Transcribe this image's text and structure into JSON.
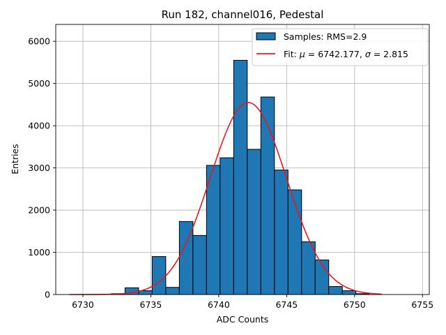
{
  "chart_data": {
    "type": "bar",
    "title": "Run 182, channel016, Pedestal",
    "xlabel": "ADC Counts",
    "ylabel": "Entries",
    "xlim": [
      6728,
      6755.5
    ],
    "ylim": [
      0,
      6400
    ],
    "xticks": [
      6730,
      6735,
      6740,
      6745,
      6750,
      6755
    ],
    "yticks": [
      0,
      1000,
      2000,
      3000,
      4000,
      5000,
      6000
    ],
    "grid": true,
    "legend_position": "top-right",
    "colors": {
      "bars": "#1f77b4",
      "bar_edge": "#000000",
      "fit": "#e41a1c",
      "grid": "#b0b0b0"
    },
    "series": [
      {
        "name": "Samples: RMS=2.9",
        "kind": "histogram",
        "bin_edges": [
          6732.1,
          6733.1,
          6734.1,
          6735.1,
          6736.1,
          6737.1,
          6738.1,
          6739.1,
          6740.1,
          6741.1,
          6742.1,
          6743.1,
          6744.1,
          6745.1,
          6746.1,
          6747.1,
          6748.1,
          6749.1,
          6750.1,
          6751.1
        ],
        "counts": [
          20,
          160,
          90,
          900,
          170,
          1730,
          1400,
          3060,
          3240,
          5550,
          3440,
          4680,
          2950,
          2480,
          1250,
          820,
          190,
          90,
          20
        ]
      },
      {
        "name": "Fit: μ = 6742.177, σ = 2.815",
        "legend_prefix": "Fit: ",
        "legend_mu_symbol": "μ",
        "legend_mu_text": " = 6742.177, ",
        "legend_sigma_symbol": "σ",
        "legend_sigma_text": " = 2.815",
        "kind": "gaussian",
        "mu": 6742.177,
        "sigma": 2.815,
        "amplitude": 4550,
        "x_range": [
          6729.0,
          6752.0
        ]
      }
    ]
  }
}
